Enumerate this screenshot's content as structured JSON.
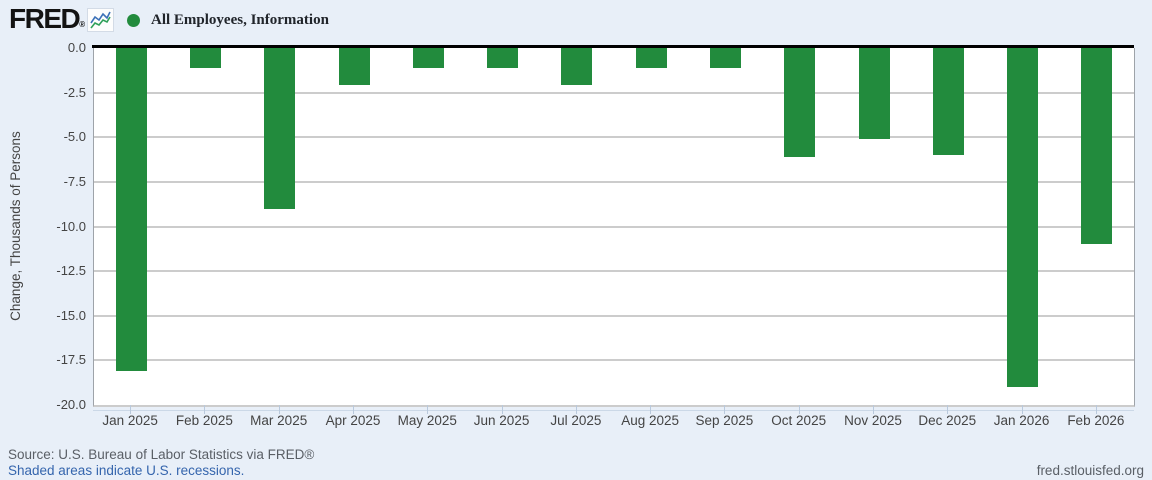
{
  "header": {
    "logo_text": "FRED",
    "logo_registered_mark": "®",
    "legend": {
      "marker_color": "#228b3d",
      "series_label": "All Employees, Information"
    }
  },
  "chart_data": {
    "type": "bar",
    "title": "All Employees, Information",
    "xlabel": "",
    "ylabel": "Change, Thousands of Persons",
    "ylim": [
      -20.0,
      0.0
    ],
    "yticks": [
      0.0,
      -2.5,
      -5.0,
      -7.5,
      -10.0,
      -12.5,
      -15.0,
      -17.5,
      -20.0
    ],
    "grid": true,
    "legend_position": "top-left",
    "bar_color": "#228b3d",
    "categories": [
      "Jan 2025",
      "Feb 2025",
      "Mar 2025",
      "Apr 2025",
      "May 2025",
      "Jun 2025",
      "Jul 2025",
      "Aug 2025",
      "Sep 2025",
      "Oct 2025",
      "Nov 2025",
      "Dec 2025",
      "Jan 2026",
      "Feb 2026"
    ],
    "values": [
      -18.1,
      -1.1,
      -9.0,
      -2.1,
      -1.1,
      -1.1,
      -2.1,
      -1.1,
      -1.1,
      -6.1,
      -5.1,
      -6.0,
      -19.0,
      -11.0
    ]
  },
  "footer": {
    "source_text": "Source: U.S. Bureau of Labor Statistics via FRED®",
    "recession_note": "Shaded areas indicate U.S. recessions.",
    "site_link": "fred.stlouisfed.org"
  },
  "icons": {
    "logo_chart": "sparkline-icon",
    "legend_marker": "filled-circle"
  },
  "colors": {
    "page_bg": "#e8eff8",
    "plot_bg": "#ffffff",
    "gridline": "#cccccc",
    "zero_line": "#000000",
    "bar": "#228b3d",
    "axis_text": "#444444",
    "link": "#3565ad",
    "muted_text": "#5a5f66"
  }
}
